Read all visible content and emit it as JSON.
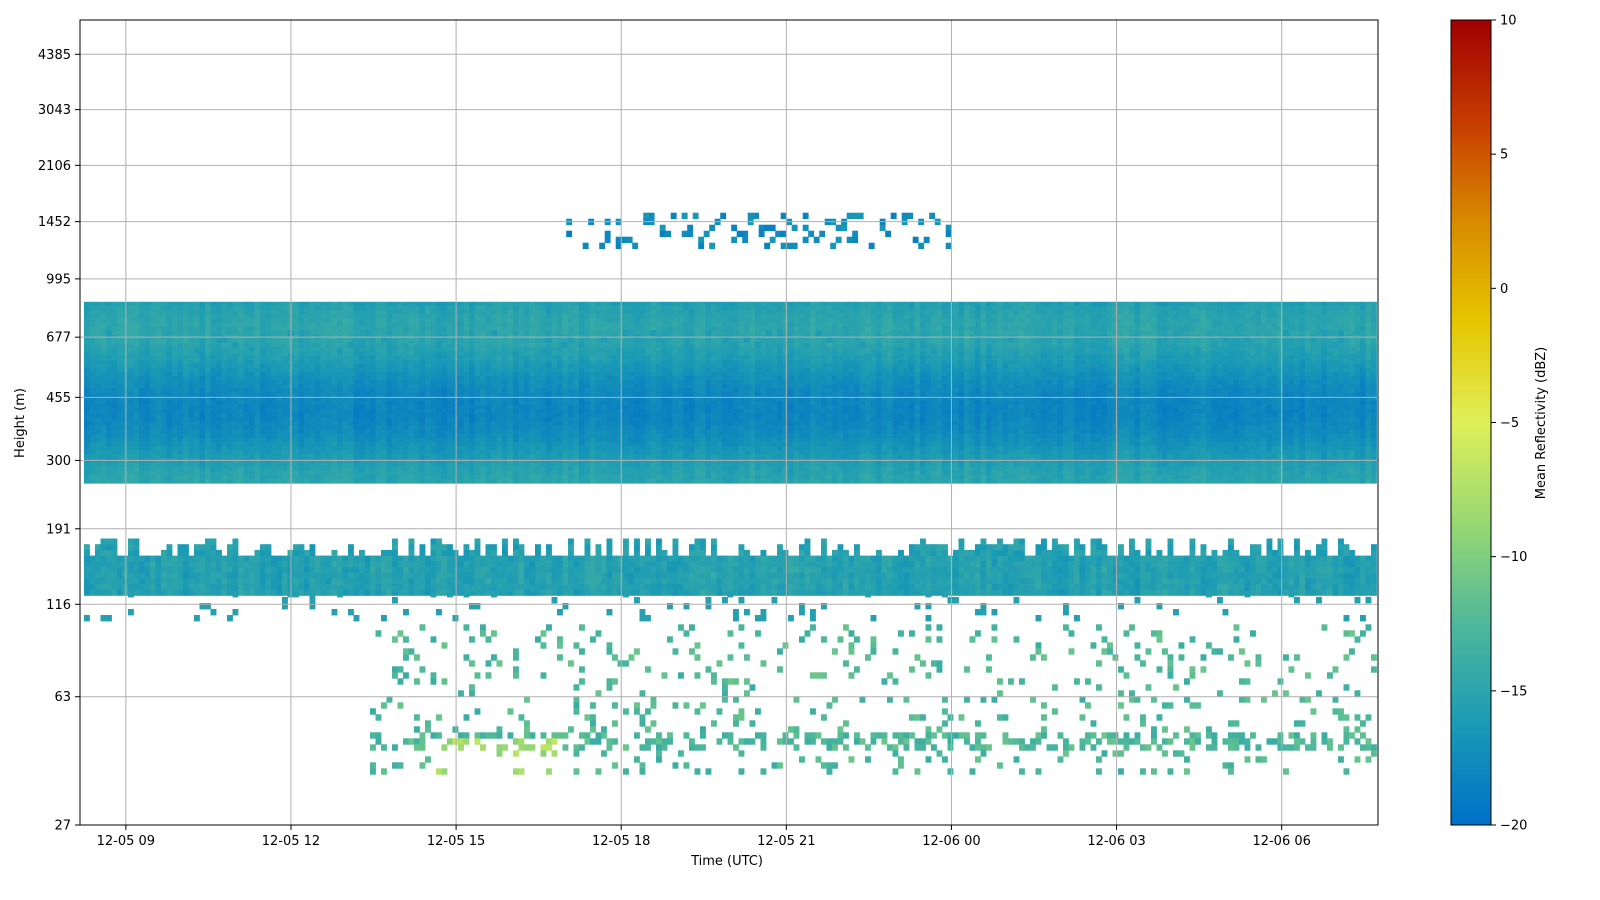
{
  "chart_data": {
    "type": "heatmap",
    "title": "",
    "xlabel": "Time (UTC)",
    "ylabel": "Height (m)",
    "grid": true,
    "x_ticks": [
      "12-05 09",
      "12-05 12",
      "12-05 15",
      "12-05 18",
      "12-05 21",
      "12-06 00",
      "12-06 03",
      "12-06 06"
    ],
    "x_range": [
      "12-05 08:10",
      "12-06 07:45"
    ],
    "y_scale": "log",
    "y_ticks": [
      27,
      63,
      116,
      191,
      300,
      455,
      677,
      995,
      1452,
      2106,
      3043,
      4385
    ],
    "y_range": [
      27,
      5500
    ],
    "colorbar": {
      "label": "Mean Reflectivity (dBZ)",
      "min": -20,
      "max": 10,
      "ticks": [
        10,
        5,
        0,
        -5,
        -10,
        -15,
        -20
      ],
      "colors": [
        "#0070c8",
        "#1a9ab5",
        "#4fb89a",
        "#98d872",
        "#dff058",
        "#e6c600",
        "#d88a00",
        "#c73b00",
        "#a00000"
      ]
    },
    "layers": [
      {
        "name": "upper boundary layer",
        "base_m": 258,
        "top_m": 855,
        "reflectivity_dbz": -16.5
      },
      {
        "name": "lower band",
        "base_m": 123,
        "top_m": 160,
        "reflectivity_dbz": -15.5
      },
      {
        "name": "elevated cloud",
        "base_m": 1250,
        "top_m": 1540,
        "reflectivity_dbz": -17.5,
        "start": "12-05 17:00",
        "end": "12-05 23:55"
      },
      {
        "name": "near-surface echoes",
        "base_m": 38,
        "top_m": 116,
        "reflectivity_dbz": -12.5
      }
    ]
  }
}
